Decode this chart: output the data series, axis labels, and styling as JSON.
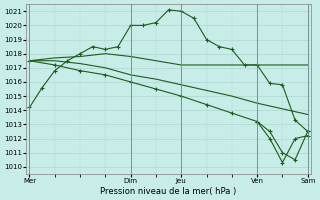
{
  "background_color": "#c8ece8",
  "grid_color": "#b0d4d0",
  "line_color": "#1a5c1a",
  "ylim": [
    1009.5,
    1021.5
  ],
  "yticks": [
    1010,
    1011,
    1012,
    1013,
    1014,
    1015,
    1016,
    1017,
    1018,
    1019,
    1020,
    1021
  ],
  "xlabel": "Pression niveau de la mer( hPa )",
  "xtick_labels": [
    "Mer",
    "Dim",
    "Jeu",
    "Ven",
    "Sam"
  ],
  "xtick_positions": [
    0,
    16,
    24,
    36,
    44
  ],
  "vline_positions": [
    0,
    16,
    24,
    36,
    44
  ],
  "line1_x": [
    0,
    2,
    4,
    6,
    8,
    10,
    12,
    14,
    16,
    18,
    20,
    22,
    24,
    26,
    28,
    30,
    32,
    34,
    36,
    38,
    40,
    42,
    44
  ],
  "line1_y": [
    1014.2,
    1015.6,
    1016.8,
    1017.5,
    1018.0,
    1018.5,
    1018.3,
    1018.5,
    1020.0,
    1020.0,
    1020.2,
    1021.1,
    1021.0,
    1020.5,
    1019.0,
    1018.5,
    1018.3,
    1017.2,
    1017.2,
    1015.9,
    1015.8,
    1013.3,
    1012.5
  ],
  "line1_markx": [
    0,
    4,
    8,
    12,
    16,
    20,
    24,
    28,
    32,
    36,
    40,
    44
  ],
  "line2_x": [
    0,
    4,
    8,
    12,
    16,
    20,
    24,
    28,
    32,
    36,
    40,
    44
  ],
  "line2_y": [
    1017.5,
    1017.7,
    1017.8,
    1018.0,
    1017.8,
    1017.5,
    1017.2,
    1017.2,
    1017.2,
    1017.2,
    1017.2,
    1017.2
  ],
  "line3_x": [
    0,
    4,
    8,
    12,
    16,
    20,
    24,
    28,
    32,
    36,
    40,
    44
  ],
  "line3_y": [
    1017.5,
    1017.5,
    1017.3,
    1017.0,
    1016.5,
    1016.2,
    1015.8,
    1015.4,
    1015.0,
    1014.5,
    1014.1,
    1013.7
  ],
  "line4_x": [
    0,
    4,
    8,
    12,
    16,
    20,
    24,
    28,
    32,
    36,
    38,
    40,
    42,
    44
  ],
  "line4_y": [
    1017.5,
    1017.2,
    1016.8,
    1016.5,
    1016.0,
    1015.5,
    1015.0,
    1014.4,
    1013.8,
    1013.2,
    1012.5,
    1011.0,
    1010.5,
    1012.5
  ],
  "line5_x": [
    36,
    38,
    40,
    42,
    44
  ],
  "line5_y": [
    1013.2,
    1012.0,
    1010.3,
    1012.0,
    1012.2
  ],
  "n_xmax": 44
}
